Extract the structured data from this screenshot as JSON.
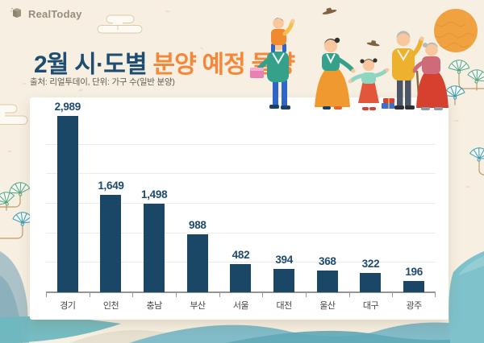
{
  "logo": {
    "text": "RealToday"
  },
  "header": {
    "title_part1": "2월 시·도별",
    "title_part2": " 분양 예정 물량",
    "source": "출처: 리얼투데이, 단위: 가구 수(일반 분양)"
  },
  "chart_data": {
    "type": "bar",
    "title": "2월 시·도별 분양 예정 물량",
    "categories": [
      "경기",
      "인천",
      "충남",
      "부산",
      "서울",
      "대전",
      "울산",
      "대구",
      "광주"
    ],
    "values": [
      2989,
      1649,
      1498,
      988,
      482,
      394,
      368,
      322,
      196
    ],
    "value_labels": [
      "2,989",
      "1,649",
      "1,498",
      "988",
      "482",
      "394",
      "368",
      "322",
      "196"
    ],
    "xlabel": "",
    "ylabel": "",
    "ylim": [
      0,
      3000
    ],
    "gridline_step": 500,
    "grid": true,
    "legend": "none",
    "bar_color": "#1b4767"
  },
  "colors": {
    "background": "#f7f0e2",
    "panel": "#ffffff",
    "bar": "#1b4767",
    "title_navy": "#1e4d70",
    "title_orange": "#f5873a",
    "sun": "#f0a140",
    "watercolor_teal": "#7fc0c9",
    "fan_green": "#5aa47f",
    "fan_teal": "#3e9ab0"
  }
}
